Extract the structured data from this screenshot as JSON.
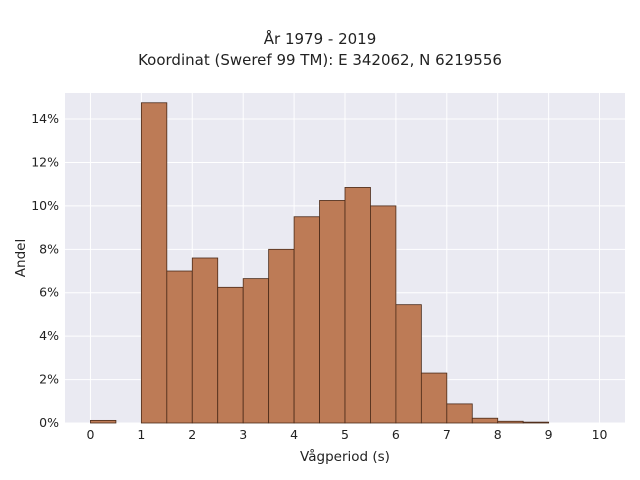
{
  "chart_data": {
    "type": "bar",
    "title": "År 1979 - 2019",
    "subtitle": "Koordinat (Sweref 99 TM): E 342062, N 6219556",
    "xlabel": "Vågperiod (s)",
    "ylabel": "Andel",
    "bin_width": 0.5,
    "bins": [
      {
        "x_start": 0.0,
        "value": 0.12
      },
      {
        "x_start": 0.5,
        "value": 0.0
      },
      {
        "x_start": 1.0,
        "value": 14.75
      },
      {
        "x_start": 1.5,
        "value": 7.0
      },
      {
        "x_start": 2.0,
        "value": 7.6
      },
      {
        "x_start": 2.5,
        "value": 6.25
      },
      {
        "x_start": 3.0,
        "value": 6.65
      },
      {
        "x_start": 3.5,
        "value": 8.0
      },
      {
        "x_start": 4.0,
        "value": 9.5
      },
      {
        "x_start": 4.5,
        "value": 10.25
      },
      {
        "x_start": 5.0,
        "value": 10.85
      },
      {
        "x_start": 5.5,
        "value": 10.0
      },
      {
        "x_start": 6.0,
        "value": 5.45
      },
      {
        "x_start": 6.5,
        "value": 2.3
      },
      {
        "x_start": 7.0,
        "value": 0.88
      },
      {
        "x_start": 7.5,
        "value": 0.22
      },
      {
        "x_start": 8.0,
        "value": 0.08
      },
      {
        "x_start": 8.5,
        "value": 0.04
      },
      {
        "x_start": 9.0,
        "value": 0.0
      },
      {
        "x_start": 9.5,
        "value": 0.0
      }
    ],
    "xlim": [
      -0.5,
      10.5
    ],
    "ylim": [
      0,
      15.2
    ],
    "xticks": [
      0,
      1,
      2,
      3,
      4,
      5,
      6,
      7,
      8,
      9,
      10
    ],
    "yticks": [
      0,
      2,
      4,
      6,
      8,
      10,
      12,
      14
    ],
    "ytick_suffix": "%",
    "grid": true,
    "colors": {
      "bar_fill": "#bd7b56",
      "bar_edge": "#4a2a18",
      "plot_background": "#eaeaf2",
      "grid": "#ffffff"
    }
  }
}
